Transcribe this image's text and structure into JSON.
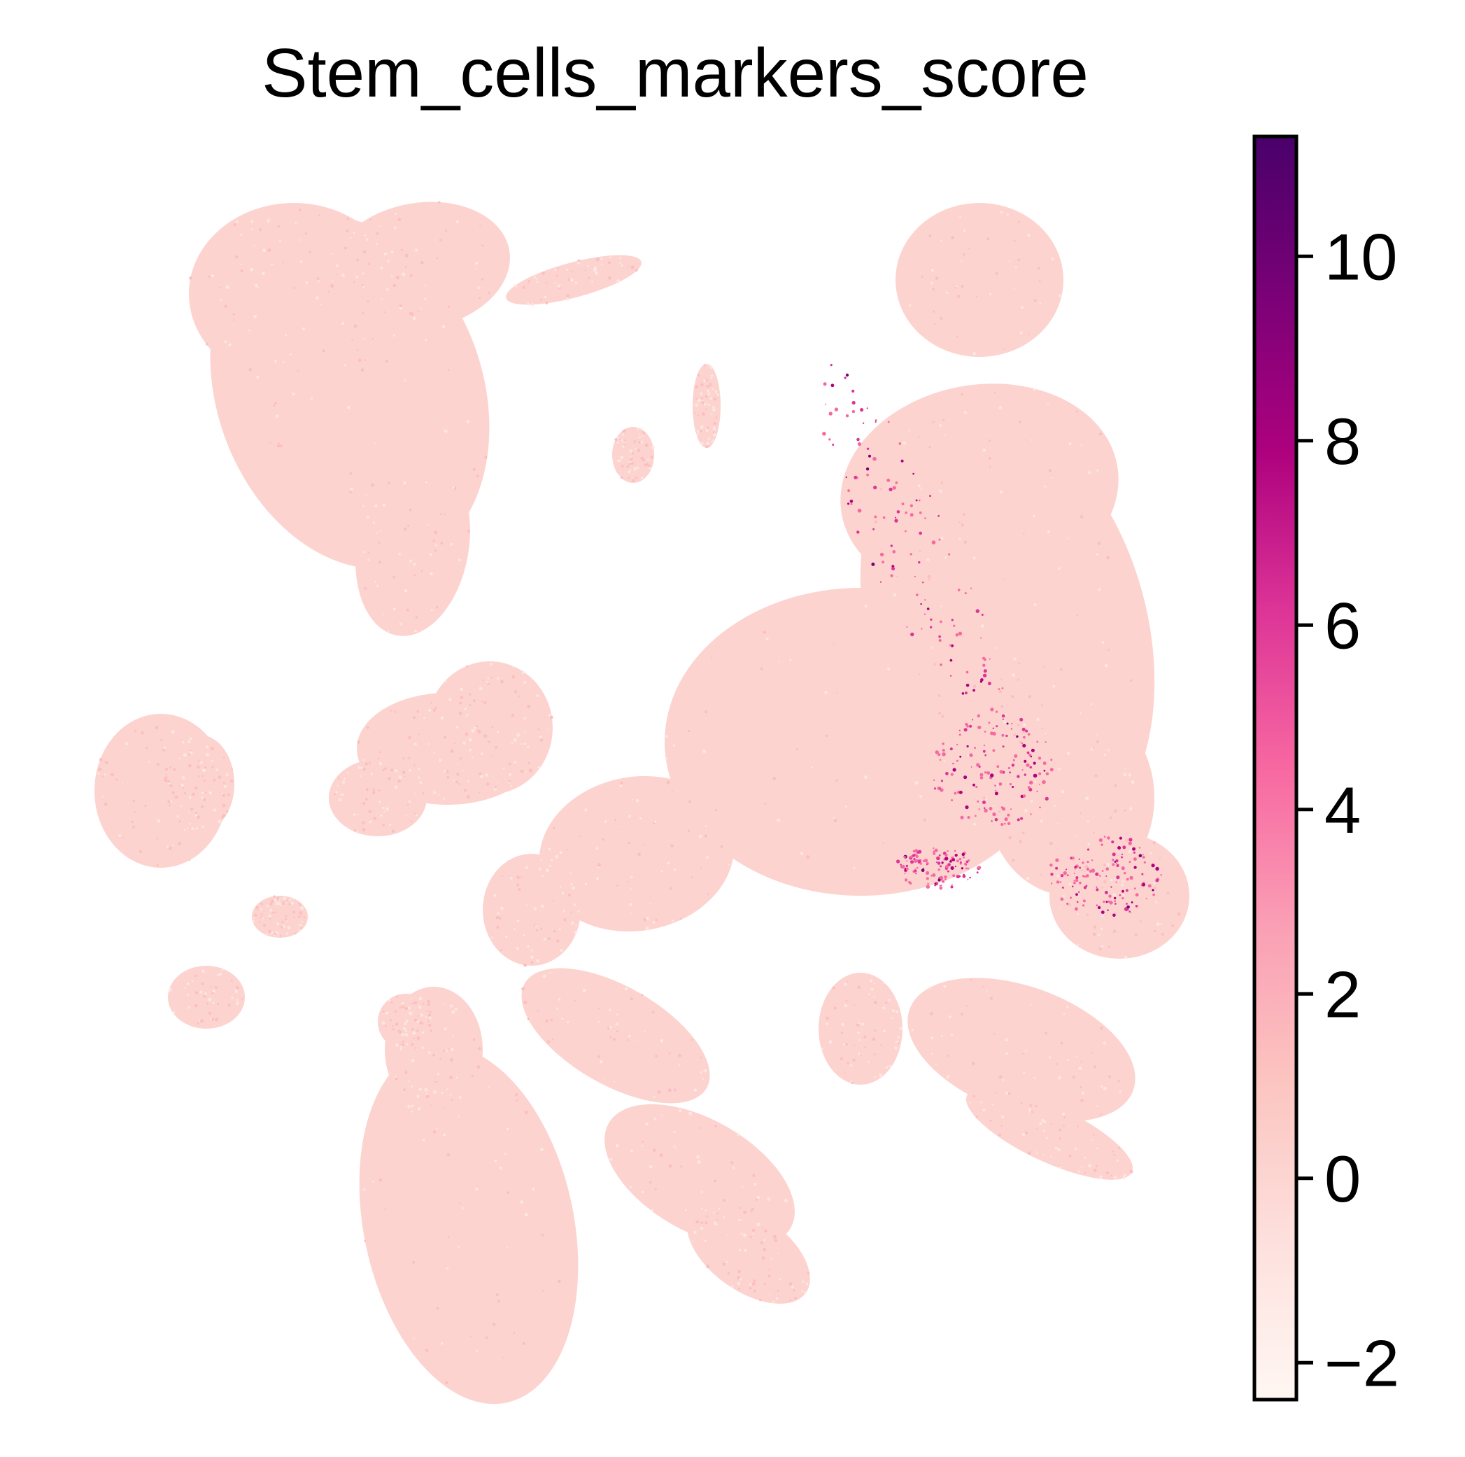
{
  "chart_data": {
    "type": "scatter",
    "title": "Stem_cells_markers_score",
    "xlabel": "",
    "ylabel": "",
    "axes_visible": false,
    "point_color_variable": "Stem_cells_markers_score",
    "colorbar": {
      "colormap": "RdPu",
      "vmin": -2.4,
      "vmax": 11.3,
      "ticks": [
        -2,
        0,
        2,
        4,
        6,
        8,
        10
      ],
      "tick_labels": [
        "−2",
        "0",
        "2",
        "4",
        "6",
        "8",
        "10"
      ],
      "colors": [
        "#fff7f3",
        "#fde0dd",
        "#fcc5c0",
        "#fa9fb5",
        "#f768a1",
        "#dd3497",
        "#ae017e",
        "#7a0177",
        "#49006a"
      ]
    },
    "base_point_color": "#fcd3cf",
    "high_point_colors": [
      "#f768a1",
      "#dd3497",
      "#ae017e",
      "#7a0177"
    ],
    "cluster_count": 24
  }
}
